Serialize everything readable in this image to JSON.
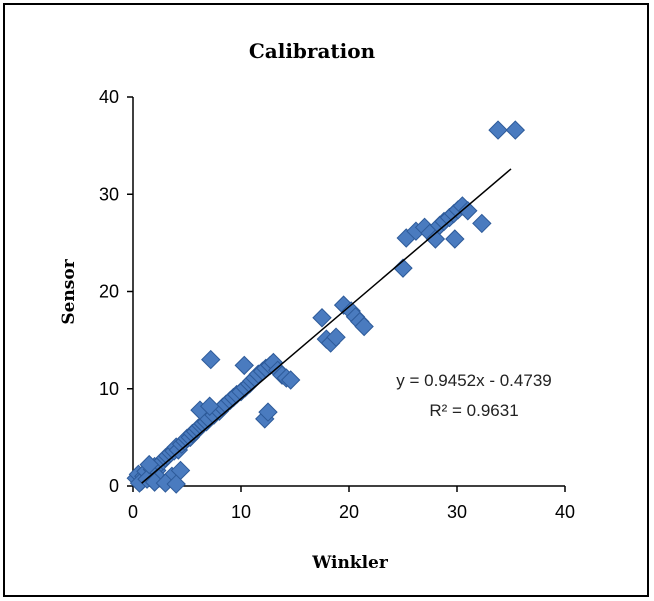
{
  "chart_data": {
    "type": "scatter",
    "title": "Calibration",
    "xlabel": "Winkler",
    "ylabel": "Sensor",
    "xlim": [
      0,
      40
    ],
    "ylim": [
      0,
      40
    ],
    "xticks": [
      "0",
      "10",
      "20",
      "30",
      "40"
    ],
    "yticks": [
      "0",
      "10",
      "20",
      "30",
      "40"
    ],
    "grid": false,
    "legend": "none",
    "marker_color": "#4a7bbf",
    "marker_edge_color": "#2d5a99",
    "trendline": {
      "slope": 0.9452,
      "intercept": -0.4739,
      "x_range": [
        0.8,
        35
      ],
      "equation": "y = 0.9452x - 0.4739",
      "r_squared": "R² = 0.9631"
    },
    "series": [
      {
        "x": [
          0.3,
          0.5,
          0.8,
          1.0,
          1.2,
          1.5,
          0.6,
          1.8,
          2.0,
          2.2,
          2.5,
          2.8,
          3.0,
          3.2,
          3.5,
          1.3,
          2.4,
          3.8,
          4.0,
          4.2,
          4.5,
          4.8,
          5.0,
          5.3,
          5.5,
          3.6,
          4.4,
          5.8,
          6.0,
          6.3,
          6.5,
          6.8,
          7.0,
          7.5,
          7.2,
          8.0,
          8.3,
          8.6,
          9.0,
          9.3,
          9.6,
          10.0,
          10.4,
          10.8,
          11.0,
          11.3,
          11.6,
          12.0,
          12.3,
          12.7,
          13.0,
          13.4,
          13.8,
          14.2,
          14.6,
          6.2,
          7.1,
          10.3,
          12.2,
          12.5,
          17.5,
          17.9,
          18.3,
          18.8,
          19.5,
          20.2,
          20.6,
          21.0,
          21.4,
          25.0,
          25.3,
          26.2,
          27.0,
          27.5,
          28.0,
          28.4,
          28.8,
          29.3,
          29.7,
          30.1,
          30.5,
          31.0,
          29.8,
          32.3,
          33.8,
          35.4,
          2.0,
          3.0,
          4.0,
          1.5
        ],
        "y": [
          0.8,
          1.2,
          0.5,
          1.0,
          1.5,
          0.9,
          0.3,
          1.7,
          2.0,
          1.6,
          2.3,
          2.6,
          2.9,
          3.1,
          3.4,
          0.7,
          0.8,
          3.6,
          4.0,
          3.7,
          4.3,
          4.6,
          4.9,
          5.0,
          5.4,
          1.0,
          1.6,
          5.6,
          5.9,
          6.2,
          6.4,
          6.6,
          6.9,
          7.3,
          13.0,
          7.7,
          8.1,
          8.4,
          8.8,
          9.1,
          9.4,
          9.7,
          10.1,
          10.5,
          10.8,
          11.1,
          11.5,
          11.8,
          12.1,
          12.4,
          12.7,
          11.9,
          11.4,
          11.1,
          10.9,
          7.8,
          8.2,
          12.4,
          6.9,
          7.6,
          17.3,
          15.1,
          14.7,
          15.3,
          18.6,
          18.0,
          17.4,
          16.9,
          16.4,
          22.4,
          25.5,
          26.2,
          26.6,
          26.0,
          25.4,
          26.8,
          27.2,
          27.6,
          28.0,
          28.4,
          28.8,
          28.3,
          25.4,
          27.0,
          36.6,
          36.6,
          0.4,
          0.3,
          0.2,
          2.2
        ]
      }
    ]
  }
}
